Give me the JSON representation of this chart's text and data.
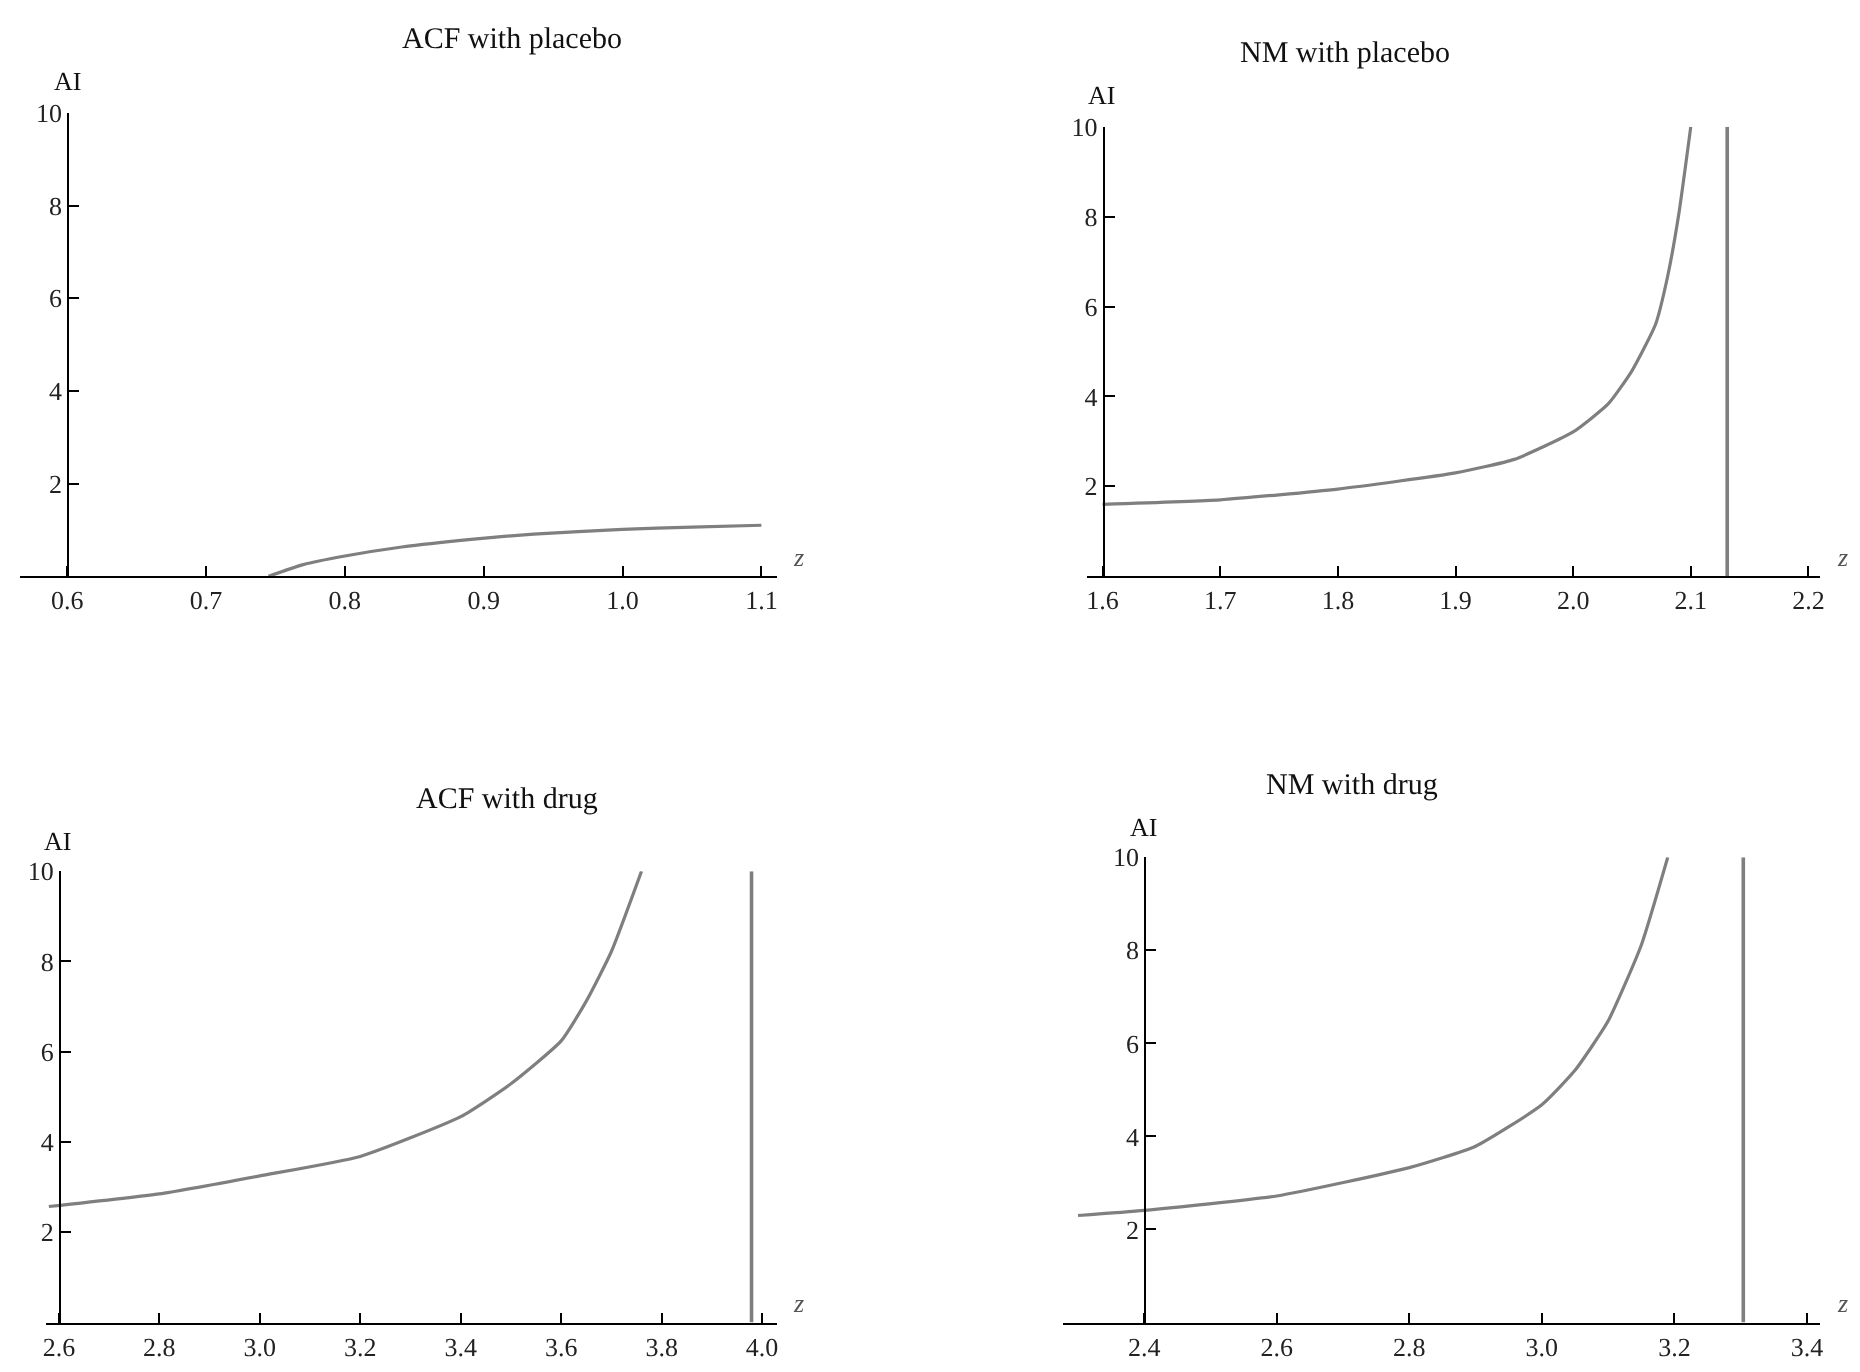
{
  "chart_data": [
    {
      "type": "line",
      "title": "ACF with placebo",
      "xlabel": "z",
      "ylabel": "AI",
      "series": [
        {
          "color": "#7f7f7f",
          "x": [
            0.745,
            0.77,
            0.799,
            0.841,
            0.889,
            0.936,
            1.0,
            1.05,
            1.1
          ],
          "values": [
            0.0,
            0.25,
            0.43,
            0.63,
            0.79,
            0.91,
            1.01,
            1.06,
            1.1
          ]
        }
      ],
      "xlim": [
        0.566,
        1.111
      ],
      "ylim": [
        0,
        10
      ],
      "xticks": [
        0.6,
        0.7,
        0.8,
        0.9,
        {
          "value": 1.0,
          "label": "1.0"
        },
        1.1
      ],
      "yticks": [
        2,
        4,
        6,
        8,
        10
      ]
    },
    {
      "type": "line",
      "title": "NM with placebo",
      "xlabel": "z",
      "ylabel": "AI",
      "series": [
        {
          "color": "#7f7f7f",
          "x": [
            1.6,
            1.7,
            1.8,
            1.9,
            1.95,
            2.0,
            2.03,
            2.05,
            2.07,
            2.08,
            2.09,
            2.1
          ],
          "values": [
            1.6,
            1.7,
            1.94,
            2.3,
            2.6,
            3.21,
            3.84,
            4.57,
            5.6,
            6.63,
            8.09,
            10
          ]
        }
      ],
      "xlim": [
        1.587,
        2.21
      ],
      "ylim": [
        0,
        10
      ],
      "xticks": [
        1.6,
        1.7,
        1.8,
        1.9,
        {
          "value": 2.0,
          "label": "2.0"
        },
        2.1,
        2.2
      ],
      "yticks": [
        2,
        4,
        6,
        8,
        10
      ],
      "ref_lines": [
        {
          "axis": "x",
          "value": 2.131,
          "color": "#7f7f7f"
        }
      ]
    },
    {
      "type": "line",
      "title": "ACF with drug",
      "xlabel": "z",
      "ylabel": "AI",
      "series": [
        {
          "color": "#7f7f7f",
          "x": [
            2.58,
            2.8,
            3.0,
            3.2,
            3.4,
            3.5,
            3.6,
            3.65,
            3.7,
            3.76
          ],
          "values": [
            2.57,
            2.85,
            3.25,
            3.68,
            4.56,
            5.29,
            6.24,
            7.12,
            8.22,
            10
          ]
        }
      ],
      "xlim": [
        2.574,
        4.029
      ],
      "ylim": [
        0,
        10
      ],
      "xticks": [
        2.6,
        2.8,
        {
          "value": 3.0,
          "label": "3.0"
        },
        3.2,
        3.4,
        3.6,
        3.8,
        {
          "value": 4.0,
          "label": "4.0"
        }
      ],
      "yticks": [
        2,
        4,
        6,
        8,
        10
      ],
      "ref_lines": [
        {
          "axis": "x",
          "value": 3.979,
          "color": "#7f7f7f"
        }
      ]
    },
    {
      "type": "line",
      "title": "NM with drug",
      "xlabel": "z",
      "ylabel": "AI",
      "series": [
        {
          "color": "#7f7f7f",
          "x": [
            2.3,
            2.4,
            2.6,
            2.8,
            2.9,
            3.0,
            3.05,
            3.1,
            3.15,
            3.19
          ],
          "values": [
            2.3,
            2.41,
            2.72,
            3.33,
            3.79,
            4.68,
            5.42,
            6.48,
            8.11,
            10
          ]
        }
      ],
      "xlim": [
        2.278,
        3.42
      ],
      "ylim": [
        0,
        10
      ],
      "xticks": [
        2.4,
        2.6,
        2.8,
        {
          "value": 3.0,
          "label": "3.0"
        },
        3.2,
        3.4
      ],
      "yticks": [
        2,
        4,
        6,
        8,
        10
      ],
      "ref_lines": [
        {
          "axis": "x",
          "value": 3.304,
          "color": "#7f7f7f"
        }
      ]
    }
  ]
}
